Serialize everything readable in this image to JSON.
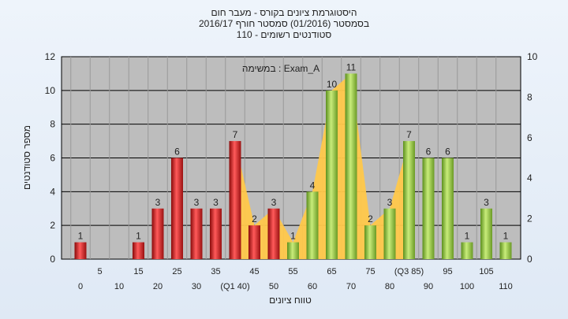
{
  "chart_data": {
    "type": "bar",
    "title_lines": [
      "היסטוגרמת ציונים בקורס - מעבר חום",
      "בסמסטר  (01/2016)  סמסטר חורף 2016/17",
      "סטודנטים רשומים - 110"
    ],
    "xlabel": "טווח ציונים",
    "ylabel": "מספר סטודנטים",
    "annotation": "במשימה : Exam_A",
    "ylim": [
      0,
      12
    ],
    "y2lim": [
      0,
      10
    ],
    "yticks": [
      0,
      2,
      4,
      6,
      8,
      10,
      12
    ],
    "y2ticks": [
      0,
      2,
      4,
      6,
      8,
      10
    ],
    "grid": true,
    "categories": [
      "0",
      "5",
      "10",
      "15",
      "20",
      "25",
      "30",
      "35",
      "40",
      "45",
      "50",
      "55",
      "60",
      "65",
      "70",
      "75",
      "80",
      "85",
      "90",
      "95",
      "100",
      "105",
      "110"
    ],
    "x_tick_labels": [
      "0",
      "5",
      "10",
      "15",
      "20",
      "25",
      "30",
      "35",
      "(Q1 40)",
      "45",
      "50",
      "55",
      "60",
      "65",
      "70",
      "75",
      "80",
      "(Q3 85)",
      "90",
      "95",
      "100",
      "105",
      "110"
    ],
    "values": [
      1,
      0,
      0,
      1,
      3,
      6,
      3,
      3,
      7,
      2,
      3,
      1,
      4,
      10,
      11,
      2,
      3,
      7,
      6,
      6,
      1,
      3,
      1
    ],
    "data_labels": [
      "1",
      "",
      "",
      "1",
      "3",
      "6",
      "3",
      "3",
      "7",
      "2",
      "3",
      "1",
      "4",
      "10",
      "11",
      "2",
      "3",
      "7",
      "6",
      "6",
      "1",
      "3",
      "1"
    ],
    "colors": {
      "red": "#e02828",
      "green": "#9acd4a",
      "area": "#ffc84a",
      "plot_bg": "#bdbdbd",
      "grid": "#000000"
    }
  }
}
